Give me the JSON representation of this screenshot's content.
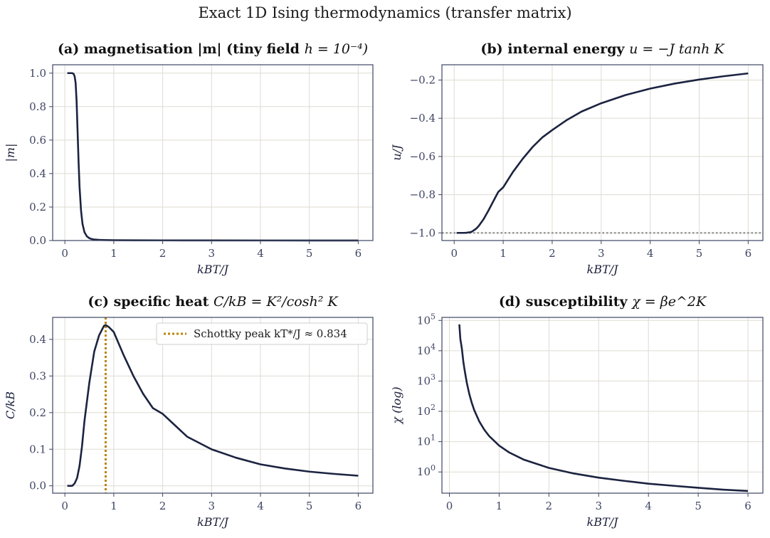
{
  "figure": {
    "suptitle": "Exact 1D Ising thermodynamics (transfer matrix)"
  },
  "colors": {
    "line": "#1b2340",
    "grid": "#dedbd2",
    "spine": "#3d4663",
    "peak": "#b8860b",
    "ground": "#9a9a9a"
  },
  "chart_data": [
    {
      "id": "a",
      "type": "line",
      "title_bold": "(a) magnetisation |m| (tiny field",
      "title_rest": "h = 10⁻⁴)",
      "xlabel": "kBT/J",
      "ylabel": "|m|",
      "xlim": [
        -0.25,
        6.3
      ],
      "ylim": [
        0,
        1.05
      ],
      "xticks": [
        0,
        1,
        2,
        3,
        4,
        5,
        6
      ],
      "yticks": [
        0.0,
        0.2,
        0.4,
        0.6,
        0.8,
        1.0
      ],
      "yticklabels": [
        "0.0",
        "0.2",
        "0.4",
        "0.6",
        "0.8",
        "1.0"
      ],
      "series": [
        {
          "x": [
            0.05,
            0.1,
            0.15,
            0.18,
            0.2,
            0.22,
            0.24,
            0.26,
            0.28,
            0.3,
            0.33,
            0.36,
            0.4,
            0.45,
            0.5,
            0.55,
            0.6,
            0.7,
            0.8,
            1.0,
            1.5,
            2,
            3,
            4,
            5,
            6
          ],
          "y": [
            1.0,
            1.0,
            1.0,
            0.995,
            0.98,
            0.94,
            0.83,
            0.65,
            0.47,
            0.32,
            0.18,
            0.1,
            0.05,
            0.025,
            0.014,
            0.009,
            0.006,
            0.004,
            0.003,
            0.002,
            0.0015,
            0.001,
            0.0007,
            0.0005,
            0.0004,
            0.0003
          ]
        }
      ]
    },
    {
      "id": "b",
      "type": "line",
      "title_bold": "(b) internal energy",
      "title_rest": "u = −J tanh K",
      "xlabel": "kBT/J",
      "ylabel": "u/J",
      "xlim": [
        -0.25,
        6.3
      ],
      "ylim": [
        -1.04,
        -0.12
      ],
      "xticks": [
        0,
        1,
        2,
        3,
        4,
        5,
        6
      ],
      "yticks": [
        -1.0,
        -0.8,
        -0.6,
        -0.4,
        -0.2
      ],
      "yticklabels": [
        "−1.0",
        "−0.8",
        "−0.6",
        "−0.4",
        "−0.2"
      ],
      "hline": {
        "y": -1.0,
        "style": "dotted"
      },
      "series": [
        {
          "x": [
            0.05,
            0.1,
            0.15,
            0.2,
            0.25,
            0.3,
            0.35,
            0.4,
            0.45,
            0.5,
            0.6,
            0.7,
            0.8,
            0.9,
            1.0,
            1.2,
            1.4,
            1.6,
            1.8,
            2.0,
            2.3,
            2.6,
            3.0,
            3.5,
            4.0,
            4.5,
            5.0,
            5.5,
            6.0
          ],
          "y": [
            -1.0,
            -1.0,
            -1.0,
            -1.0,
            -0.9991,
            -0.9975,
            -0.9951,
            -0.9866,
            -0.9776,
            -0.964,
            -0.9284,
            -0.8826,
            -0.8337,
            -0.7855,
            -0.7616,
            -0.6808,
            -0.6117,
            -0.5506,
            -0.5,
            -0.4621,
            -0.409,
            -0.3649,
            -0.3215,
            -0.2783,
            -0.2449,
            -0.2184,
            -0.1974,
            -0.18,
            -0.1651
          ]
        }
      ]
    },
    {
      "id": "c",
      "type": "line",
      "title_bold": "(c) specific heat",
      "title_rest": "C/kB = K²/cosh² K",
      "xlabel": "kBT/J",
      "ylabel": "C/kB",
      "xlim": [
        -0.25,
        6.3
      ],
      "ylim": [
        -0.02,
        0.46
      ],
      "xticks": [
        0,
        1,
        2,
        3,
        4,
        5,
        6
      ],
      "yticks": [
        0.0,
        0.1,
        0.2,
        0.3,
        0.4
      ],
      "yticklabels": [
        "0.0",
        "0.1",
        "0.2",
        "0.3",
        "0.4"
      ],
      "vline": {
        "x": 0.834,
        "style": "dotted"
      },
      "legend": {
        "label": "Schottky peak kT*/J ≈ 0.834",
        "loc": "upper right"
      },
      "series": [
        {
          "x": [
            0.05,
            0.1,
            0.15,
            0.2,
            0.25,
            0.3,
            0.35,
            0.4,
            0.5,
            0.6,
            0.7,
            0.8,
            0.834,
            0.9,
            1.0,
            1.2,
            1.4,
            1.6,
            1.8,
            2.0,
            2.5,
            3.0,
            3.5,
            4.0,
            4.5,
            5.0,
            5.5,
            6.0
          ],
          "y": [
            0.0,
            0.0,
            0.0,
            0.0067,
            0.0215,
            0.0547,
            0.1078,
            0.1766,
            0.2819,
            0.3664,
            0.4111,
            0.437,
            0.4392,
            0.4335,
            0.42,
            0.3574,
            0.3005,
            0.2514,
            0.2123,
            0.1966,
            0.1343,
            0.0998,
            0.0768,
            0.0587,
            0.0474,
            0.0388,
            0.0327,
            0.0276
          ]
        }
      ]
    },
    {
      "id": "d",
      "type": "line",
      "title_bold": "(d) susceptibility",
      "title_rest": "χ = βe^2K",
      "xlabel": "kBT/J",
      "ylabel": "χ (log)",
      "yscale": "log",
      "xlim": [
        -0.15,
        6.3
      ],
      "ylim_log10": [
        -0.7,
        5.1
      ],
      "xticks": [
        0,
        1,
        2,
        3,
        4,
        5,
        6
      ],
      "yticks_log10": [
        0,
        1,
        2,
        3,
        4,
        5
      ],
      "yticklabels_base": "10",
      "yticklabels_exp": [
        "0",
        "1",
        "2",
        "3",
        "4",
        "5"
      ],
      "series": [
        {
          "x": [
            0.2,
            0.22,
            0.25,
            0.28,
            0.3,
            0.35,
            0.4,
            0.45,
            0.5,
            0.6,
            0.7,
            0.8,
            1.0,
            1.2,
            1.5,
            2.0,
            2.5,
            3.0,
            3.5,
            4.0,
            4.5,
            5.0,
            5.5,
            6.0
          ],
          "y": [
            74207,
            24500,
            11924,
            4405,
            2621,
            874,
            371,
            190,
            109,
            46.6,
            24.9,
            15.2,
            7.39,
            4.41,
            2.53,
            1.36,
            0.89,
            0.65,
            0.51,
            0.41,
            0.35,
            0.3,
            0.26,
            0.235
          ]
        }
      ]
    }
  ]
}
